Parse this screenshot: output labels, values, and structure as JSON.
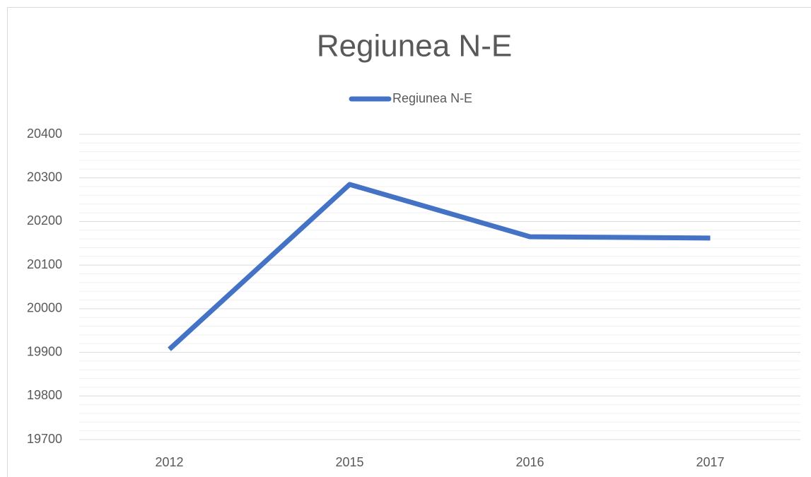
{
  "chart_data": {
    "type": "line",
    "title": "Regiunea N-E",
    "categories": [
      "2012",
      "2015",
      "2016",
      "2017"
    ],
    "series": [
      {
        "name": "Regiunea N-E",
        "color": "#4472c4",
        "values": [
          19907,
          20285,
          20165,
          20162
        ]
      }
    ],
    "ylim": [
      19700,
      20400
    ],
    "yticks": [
      19700,
      19800,
      19900,
      20000,
      20100,
      20200,
      20300,
      20400
    ],
    "grid": true,
    "legend": "top"
  }
}
